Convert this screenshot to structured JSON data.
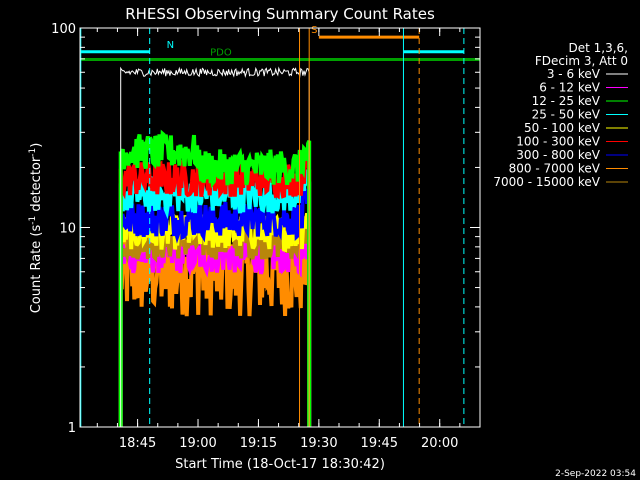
{
  "chart_data": {
    "type": "line",
    "title": "RHESSI Observing Summary Count Rates",
    "xlabel": "Start Time (18-Oct-17 18:30:42)",
    "ylabel": "Count Rate (s⁻¹ detector⁻¹)",
    "ylabel_base": "Count Rate (s",
    "ylabel_mid": " detector",
    "ylabel_end": ")",
    "ylabel_sup": "-1",
    "yscale": "log",
    "ylim": [
      1,
      100
    ],
    "xlim": [
      18.5117,
      20.1667
    ],
    "x_units": "hours",
    "x_ticks": [
      {
        "v": 18.75,
        "label": "18:45"
      },
      {
        "v": 19.0,
        "label": "19:00"
      },
      {
        "v": 19.25,
        "label": "19:15"
      },
      {
        "v": 19.5,
        "label": "19:30"
      },
      {
        "v": 19.75,
        "label": "19:45"
      },
      {
        "v": 20.0,
        "label": "20:00"
      }
    ],
    "y_ticks": [
      {
        "v": 1,
        "label": "1"
      },
      {
        "v": 10,
        "label": "10"
      },
      {
        "v": 100,
        "label": "100"
      }
    ],
    "legend_header": [
      "Det 1,3,6,",
      "FDecim 3, Att 0"
    ],
    "legend_position": "right",
    "series": [
      {
        "name": "3 - 6 keV",
        "color": "#ffffff",
        "level": 60
      },
      {
        "name": "6 - 12 keV",
        "color": "#ff00ff",
        "level": 7.2
      },
      {
        "name": "12 - 25 keV",
        "color": "#00ff00",
        "level": 20
      },
      {
        "name": "25 - 50 keV",
        "color": "#00ffff",
        "level": 14.5
      },
      {
        "name": "50 - 100 keV",
        "color": "#ffff00",
        "level": 9.5
      },
      {
        "name": "100 - 300 keV",
        "color": "#ff0000",
        "level": 17.5
      },
      {
        "name": "300 - 800 keV",
        "color": "#0000ff",
        "level": 11
      },
      {
        "name": "800 - 7000 keV",
        "color": "#ff8c00",
        "level": 6
      },
      {
        "name": "7000 - 15000 keV",
        "color": "#b8860b",
        "level": 8.5
      }
    ],
    "flag_bars": [
      {
        "label": "N",
        "color": "#00ffff",
        "y": 76,
        "segments": [
          [
            18.5117,
            18.8
          ],
          [
            19.85,
            20.1
          ]
        ],
        "label_x": 18.87
      },
      {
        "label": "S",
        "color": "#ff8c00",
        "y": 90,
        "segments": [
          [
            19.5,
            19.915
          ]
        ],
        "label_x": 19.468
      },
      {
        "label": "PDO",
        "color": "#00a000",
        "y": 69.5,
        "segments": [
          [
            18.5117,
            20.1667
          ]
        ],
        "label_x": 19.05
      }
    ],
    "vlines": [
      {
        "x": 18.515,
        "color": "#00ffff",
        "dash": false
      },
      {
        "x": 18.8,
        "color": "#00ffff",
        "dash": true
      },
      {
        "x": 19.42,
        "color": "#ff8c00",
        "dash": false
      },
      {
        "x": 19.46,
        "color": "#ff8c00",
        "dash": false
      },
      {
        "x": 19.85,
        "color": "#00ffff",
        "dash": false
      },
      {
        "x": 19.915,
        "color": "#ff8c00",
        "dash": true
      },
      {
        "x": 20.1,
        "color": "#00ffff",
        "dash": true
      }
    ],
    "data_span": [
      18.68,
      19.46
    ]
  },
  "footer_date": "2-Sep-2022 03:54"
}
